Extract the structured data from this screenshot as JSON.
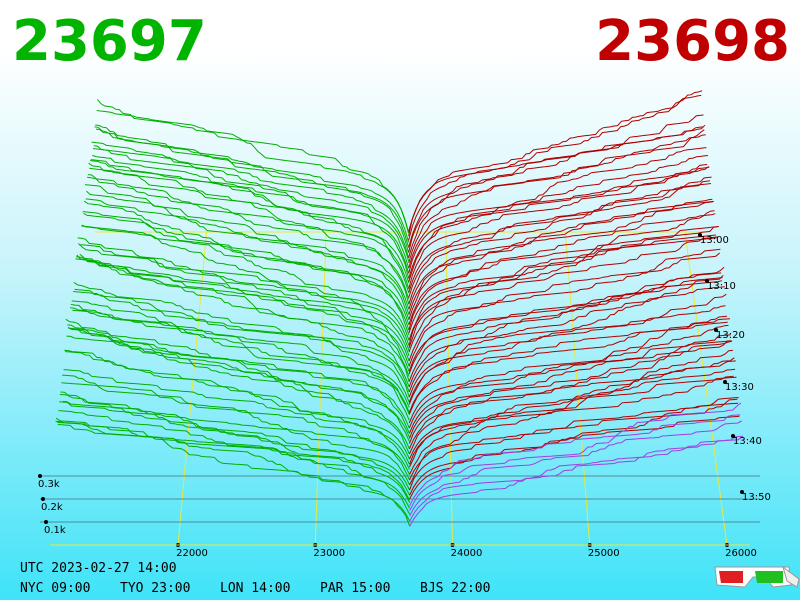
{
  "bid": "23697",
  "ask": "23698",
  "price_axis": [
    "22000",
    "23000",
    "24000",
    "25000",
    "26000"
  ],
  "time_axis": [
    "13:00",
    "13:10",
    "13:20",
    "13:30",
    "13:40",
    "13:50"
  ],
  "depth_axis": [
    "0.3k",
    "0.2k",
    "0.1k"
  ],
  "clock": {
    "utc": "UTC 2023-02-27 14:00",
    "cities": [
      "NYC 09:00",
      "TYO 23:00",
      "LON 14:00",
      "PAR 15:00",
      "BJS 22:00"
    ]
  }
}
